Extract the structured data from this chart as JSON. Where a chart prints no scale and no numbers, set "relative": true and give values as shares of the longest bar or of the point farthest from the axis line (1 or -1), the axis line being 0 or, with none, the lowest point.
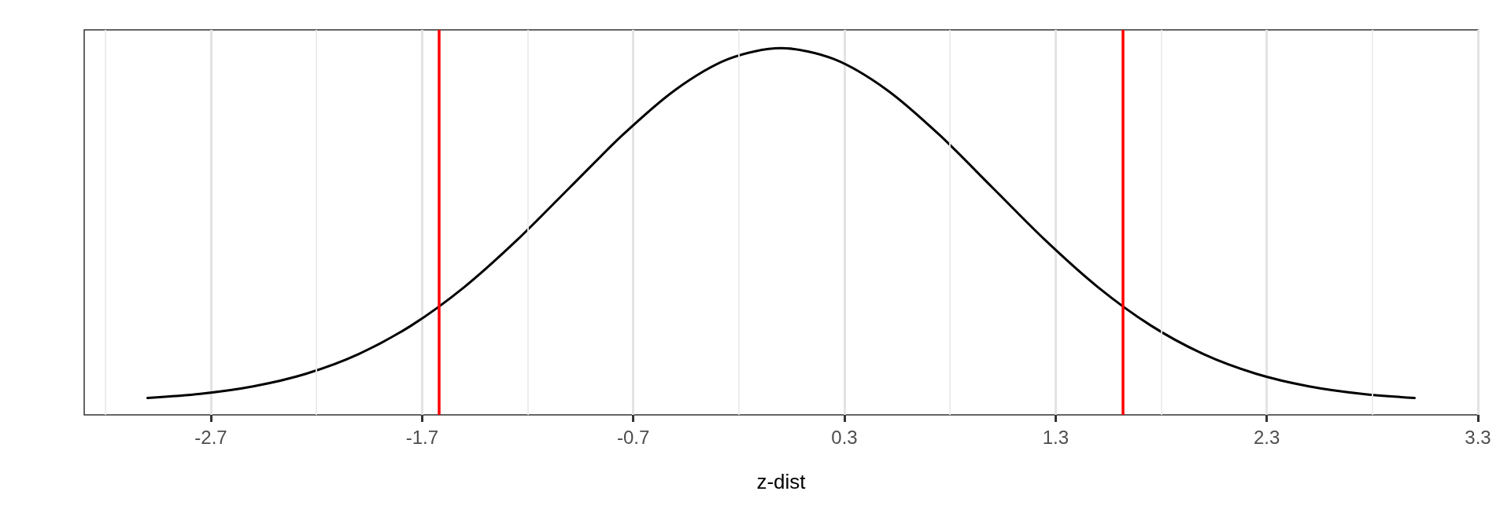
{
  "chart_data": {
    "type": "line",
    "xlabel": "z-dist",
    "relative": true,
    "series": [
      {
        "color": "#000000",
        "x": [
          -3,
          -2.75,
          -2.5,
          -2.25,
          -2,
          -1.75,
          -1.5,
          -1.25,
          -1,
          -0.75,
          -0.5,
          -0.25,
          0,
          0.25,
          0.5,
          0.75,
          1,
          1.25,
          1.5,
          1.75,
          2,
          2.25,
          2.5,
          2.75,
          3
        ],
        "values": [
          0.046,
          0.0573,
          0.0777,
          0.112,
          0.1658,
          0.244,
          0.3485,
          0.4769,
          0.6204,
          0.7635,
          0.8867,
          0.9703,
          1,
          0.9703,
          0.8867,
          0.7635,
          0.6204,
          0.4769,
          0.3485,
          0.244,
          0.1658,
          0.112,
          0.0777,
          0.0573,
          0.046
        ]
      }
    ],
    "xlim": [
      -3.3,
      3.3
    ],
    "xticks": [
      -2.7,
      -1.7,
      -0.7,
      0.3,
      1.3,
      2.3,
      3.3
    ],
    "ref_lines": [
      {
        "axis": "x",
        "value": -1.62,
        "color": "#ff0000"
      },
      {
        "axis": "x",
        "value": 1.62,
        "color": "#ff0000"
      }
    ],
    "grid": "x",
    "marker": "none",
    "line_style": "solid"
  }
}
